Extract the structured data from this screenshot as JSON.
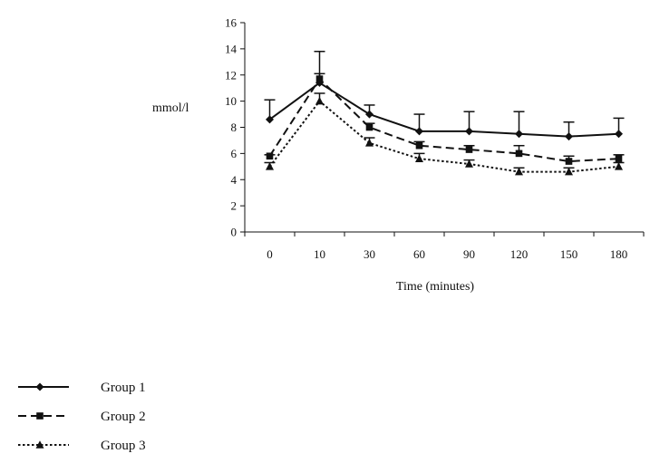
{
  "chart_data": {
    "type": "line",
    "title": "",
    "xlabel": "Time (minutes)",
    "ylabel": "mmol/l",
    "categories": [
      "0",
      "10",
      "30",
      "60",
      "90",
      "120",
      "150",
      "180"
    ],
    "ylim": [
      0,
      16
    ],
    "yticks": [
      "0",
      "2",
      "4",
      "6",
      "8",
      "10",
      "12",
      "14",
      "16"
    ],
    "grid": false,
    "legend_position": "bottom-left",
    "error_bars": "upper SD shown on Group 1",
    "series": [
      {
        "name": "Group 1",
        "line_style": "solid",
        "marker": "diamond",
        "values": [
          8.6,
          11.4,
          9.0,
          7.7,
          7.7,
          7.5,
          7.3,
          7.5
        ],
        "error_upper": [
          10.1,
          13.8,
          9.7,
          9.0,
          9.2,
          9.2,
          8.4,
          8.7
        ]
      },
      {
        "name": "Group 2",
        "line_style": "dashed",
        "marker": "square",
        "values": [
          5.8,
          11.7,
          8.0,
          6.6,
          6.3,
          6.0,
          5.4,
          5.6
        ],
        "error_upper": [
          5.9,
          12.1,
          8.3,
          6.9,
          6.6,
          6.6,
          5.8,
          5.9
        ]
      },
      {
        "name": "Group 3",
        "line_style": "dotted",
        "marker": "triangle",
        "values": [
          5.0,
          10.0,
          6.8,
          5.6,
          5.2,
          4.6,
          4.6,
          5.0
        ],
        "error_upper": [
          5.3,
          10.6,
          7.2,
          6.0,
          5.5,
          4.9,
          4.9,
          5.3
        ]
      }
    ]
  },
  "colors": {
    "ink": "#111111",
    "background": "#ffffff"
  }
}
